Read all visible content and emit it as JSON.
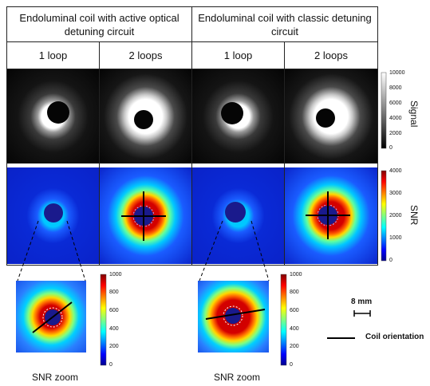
{
  "header": {
    "group_left": "Endoluminal coil with active optical detuning circuit",
    "group_right": "Endoluminal coil with classic detuning circuit",
    "cols": [
      "1 loop",
      "2 loops",
      "1 loop",
      "2 loops"
    ]
  },
  "signal_colorbar": {
    "label": "Signal",
    "ticks": [
      "10000",
      "8000",
      "6000",
      "4000",
      "2000",
      "0"
    ],
    "max": 10000
  },
  "snr_colorbar": {
    "label": "SNR",
    "ticks": [
      "4000",
      "3000",
      "2000",
      "1000",
      "0"
    ],
    "max": 4000
  },
  "zoom_colorbar": {
    "ticks": [
      "1000",
      "800",
      "600",
      "400",
      "200",
      "0"
    ],
    "max": 1000
  },
  "zoom_labels": [
    "SNR zoom",
    "SNR zoom"
  ],
  "scale_bar": {
    "label": "8 mm"
  },
  "legend": {
    "label": "Coil orientation"
  },
  "colors": {
    "jet_blue": "#0a2ad6",
    "jet_red": "#c80000",
    "signal_ring": "#ffffff",
    "background_dark": "#050505"
  }
}
